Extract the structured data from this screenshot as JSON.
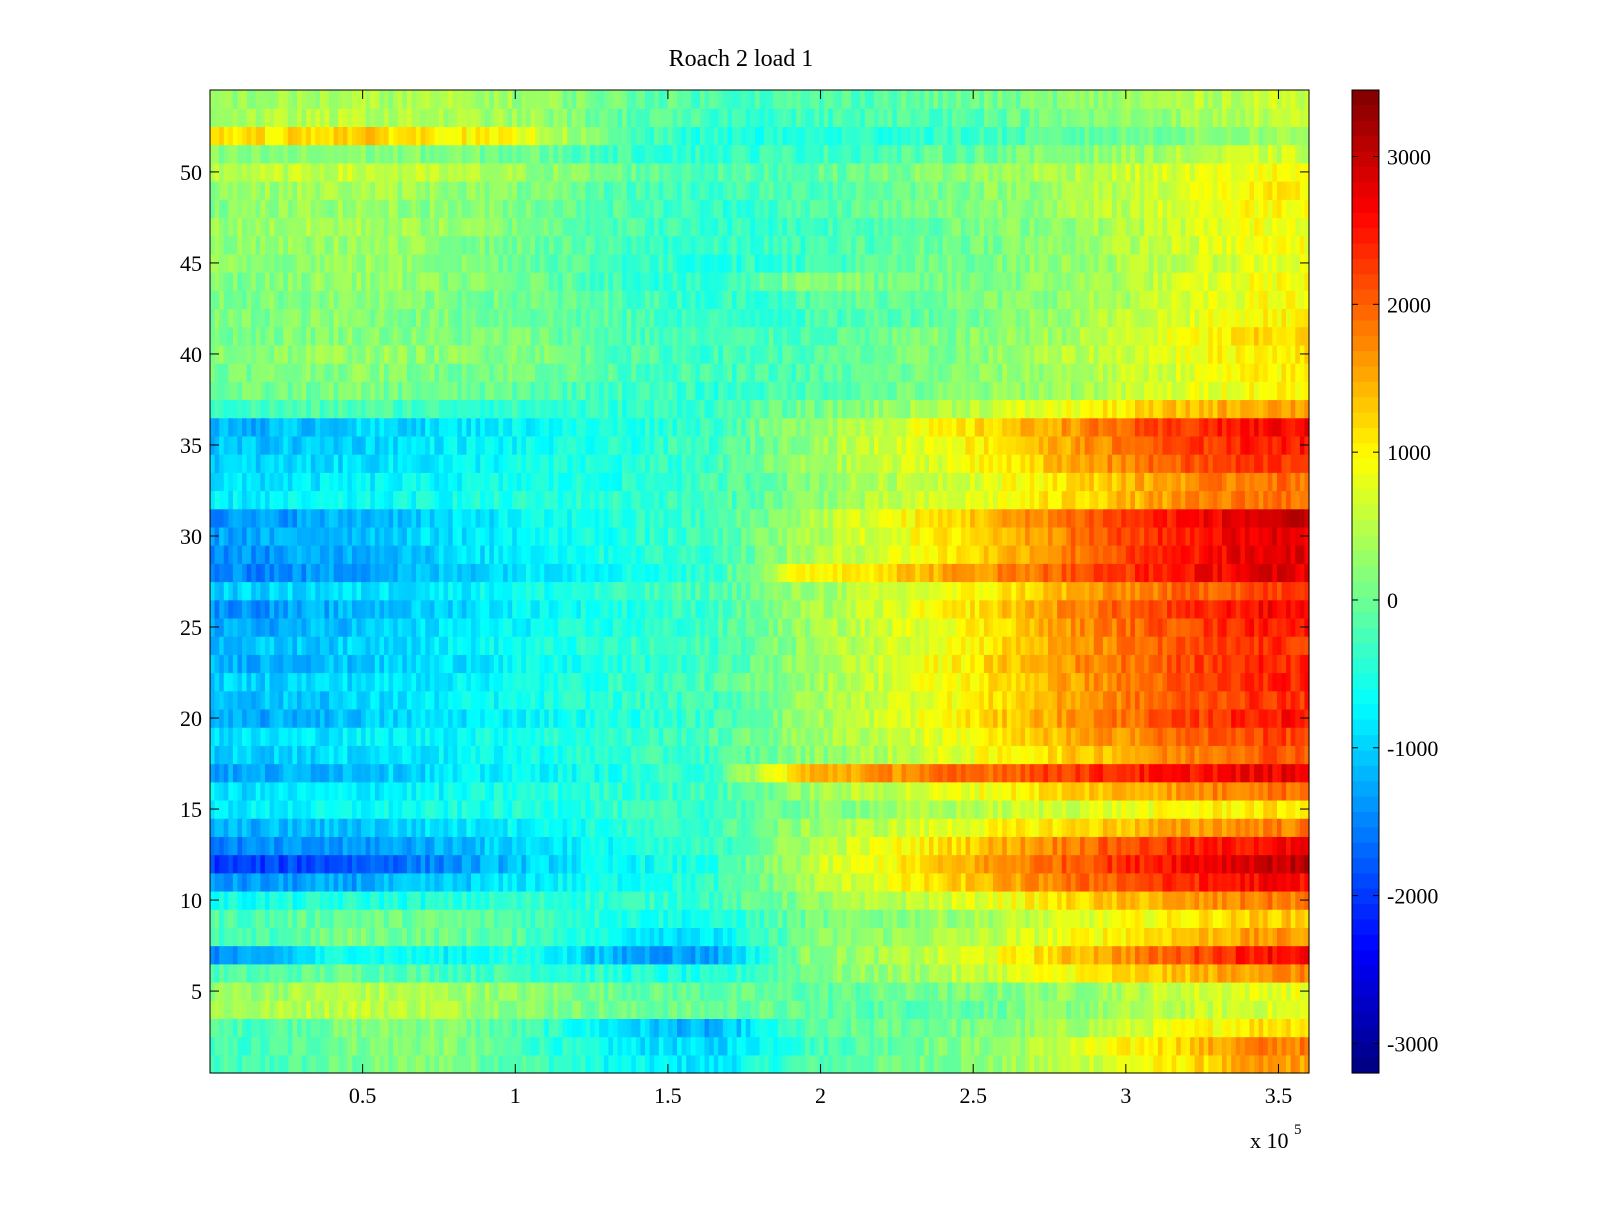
{
  "chart_data": {
    "type": "heatmap",
    "title": "Roach 2 load 1",
    "xlabel": "",
    "ylabel": "",
    "x_multiplier_label": "x 10",
    "x_multiplier_exponent": "5",
    "xlim": [
      0,
      360000
    ],
    "ylim": [
      0.5,
      54.5
    ],
    "rows": 54,
    "x_ticks": [
      {
        "value": 50000,
        "label": "0.5"
      },
      {
        "value": 100000,
        "label": "1"
      },
      {
        "value": 150000,
        "label": "1.5"
      },
      {
        "value": 200000,
        "label": "2"
      },
      {
        "value": 250000,
        "label": "2.5"
      },
      {
        "value": 300000,
        "label": "3"
      },
      {
        "value": 350000,
        "label": "3.5"
      }
    ],
    "y_ticks": [
      {
        "value": 5,
        "label": "5"
      },
      {
        "value": 10,
        "label": "10"
      },
      {
        "value": 15,
        "label": "15"
      },
      {
        "value": 20,
        "label": "20"
      },
      {
        "value": 25,
        "label": "25"
      },
      {
        "value": 30,
        "label": "30"
      },
      {
        "value": 35,
        "label": "35"
      },
      {
        "value": 40,
        "label": "40"
      },
      {
        "value": 45,
        "label": "45"
      },
      {
        "value": 50,
        "label": "50"
      }
    ],
    "colorbar": {
      "colormap": "jet",
      "clim": [
        -3200,
        3450
      ],
      "ticks": [
        {
          "value": 3000,
          "label": "3000"
        },
        {
          "value": 2000,
          "label": "2000"
        },
        {
          "value": 1000,
          "label": "1000"
        },
        {
          "value": 0,
          "label": "0"
        },
        {
          "value": -1000,
          "label": "-1000"
        },
        {
          "value": -2000,
          "label": "-2000"
        },
        {
          "value": -3000,
          "label": "-3000"
        }
      ]
    },
    "x_bin_centers": [
      15000,
      45000,
      75000,
      105000,
      135000,
      165000,
      195000,
      225000,
      255000,
      285000,
      315000,
      345000
    ],
    "z_rows_by_y": [
      {
        "y": 1,
        "values": [
          -300,
          0,
          200,
          -200,
          -700,
          -900,
          -200,
          0,
          200,
          600,
          1000,
          1600
        ]
      },
      {
        "y": 2,
        "values": [
          -300,
          100,
          200,
          -300,
          -800,
          -1000,
          -300,
          0,
          200,
          700,
          1200,
          1800
        ]
      },
      {
        "y": 3,
        "values": [
          -200,
          100,
          200,
          -300,
          -900,
          -1300,
          -200,
          0,
          100,
          400,
          800,
          1200
        ]
      },
      {
        "y": 4,
        "values": [
          400,
          600,
          500,
          200,
          0,
          0,
          -100,
          -100,
          0,
          200,
          500,
          700
        ]
      },
      {
        "y": 5,
        "values": [
          300,
          500,
          400,
          200,
          0,
          -100,
          -100,
          0,
          100,
          300,
          600,
          800
        ]
      },
      {
        "y": 6,
        "values": [
          -200,
          0,
          -200,
          -300,
          -500,
          -600,
          100,
          300,
          600,
          1000,
          1300,
          1700
        ]
      },
      {
        "y": 7,
        "values": [
          -1400,
          -500,
          -700,
          -500,
          -1300,
          -1300,
          200,
          400,
          800,
          1400,
          2000,
          2600
        ]
      },
      {
        "y": 8,
        "values": [
          -300,
          100,
          0,
          -200,
          -700,
          -900,
          100,
          300,
          500,
          900,
          1300,
          1600
        ]
      },
      {
        "y": 9,
        "values": [
          -200,
          0,
          0,
          -200,
          -500,
          -600,
          0,
          200,
          400,
          700,
          1000,
          1300
        ]
      },
      {
        "y": 10,
        "values": [
          -600,
          -500,
          -500,
          -400,
          -400,
          -300,
          200,
          500,
          800,
          1200,
          1500,
          1800
        ]
      },
      {
        "y": 11,
        "values": [
          -1400,
          -1300,
          -1100,
          -800,
          -600,
          -400,
          400,
          900,
          1400,
          1900,
          2300,
          2600
        ]
      },
      {
        "y": 12,
        "values": [
          -2000,
          -1800,
          -1500,
          -1000,
          -700,
          -500,
          500,
          1000,
          1600,
          2100,
          2600,
          3000
        ]
      },
      {
        "y": 13,
        "values": [
          -1500,
          -1400,
          -1200,
          -900,
          -600,
          -400,
          400,
          900,
          1400,
          1900,
          2300,
          2600
        ]
      },
      {
        "y": 14,
        "values": [
          -1200,
          -1100,
          -900,
          -700,
          -500,
          -300,
          300,
          600,
          900,
          1200,
          1500,
          1800
        ]
      },
      {
        "y": 15,
        "values": [
          -800,
          -700,
          -600,
          -500,
          -400,
          -300,
          100,
          300,
          500,
          700,
          900,
          1100
        ]
      },
      {
        "y": 16,
        "values": [
          -900,
          -800,
          -700,
          -500,
          -400,
          -300,
          300,
          600,
          900,
          1300,
          1600,
          1900
        ]
      },
      {
        "y": 17,
        "values": [
          -1300,
          -1100,
          -900,
          -700,
          -500,
          -300,
          1400,
          1700,
          2000,
          2300,
          2500,
          2700
        ]
      },
      {
        "y": 18,
        "values": [
          -1000,
          -900,
          -800,
          -600,
          -400,
          -300,
          200,
          500,
          900,
          1300,
          1700,
          2100
        ]
      },
      {
        "y": 19,
        "values": [
          -900,
          -800,
          -700,
          -500,
          -400,
          -200,
          300,
          600,
          1000,
          1500,
          1900,
          2200
        ]
      },
      {
        "y": 20,
        "values": [
          -1300,
          -1100,
          -900,
          -700,
          -500,
          -300,
          300,
          700,
          1200,
          1700,
          2100,
          2500
        ]
      },
      {
        "y": 21,
        "values": [
          -1100,
          -1000,
          -800,
          -600,
          -400,
          -300,
          300,
          700,
          1100,
          1600,
          2000,
          2300
        ]
      },
      {
        "y": 22,
        "values": [
          -1000,
          -900,
          -800,
          -600,
          -400,
          -200,
          300,
          700,
          1100,
          1600,
          2000,
          2400
        ]
      },
      {
        "y": 23,
        "values": [
          -1200,
          -1100,
          -900,
          -700,
          -500,
          -300,
          300,
          700,
          1200,
          1700,
          2100,
          2400
        ]
      },
      {
        "y": 24,
        "values": [
          -1100,
          -1000,
          -800,
          -600,
          -400,
          -300,
          300,
          700,
          1100,
          1600,
          2000,
          2300
        ]
      },
      {
        "y": 25,
        "values": [
          -1300,
          -1100,
          -900,
          -700,
          -500,
          -300,
          300,
          700,
          1100,
          1700,
          2100,
          2500
        ]
      },
      {
        "y": 26,
        "values": [
          -1400,
          -1200,
          -1000,
          -700,
          -500,
          -300,
          300,
          700,
          1200,
          1800,
          2200,
          2600
        ]
      },
      {
        "y": 27,
        "values": [
          -1000,
          -900,
          -800,
          -600,
          -400,
          -200,
          300,
          600,
          1000,
          1500,
          1900,
          2200
        ]
      },
      {
        "y": 28,
        "values": [
          -1500,
          -1300,
          -1100,
          -800,
          -600,
          -400,
          1000,
          1300,
          1700,
          2100,
          2500,
          2800
        ]
      },
      {
        "y": 29,
        "values": [
          -1400,
          -1200,
          -1000,
          -700,
          -500,
          -300,
          400,
          800,
          1300,
          1900,
          2400,
          2800
        ]
      },
      {
        "y": 30,
        "values": [
          -1300,
          -1100,
          -900,
          -700,
          -500,
          -300,
          400,
          800,
          1300,
          1900,
          2400,
          2800
        ]
      },
      {
        "y": 31,
        "values": [
          -1400,
          -1200,
          -1000,
          -700,
          -500,
          -300,
          400,
          900,
          1400,
          2000,
          2500,
          2900
        ]
      },
      {
        "y": 32,
        "values": [
          -800,
          -700,
          -600,
          -500,
          -400,
          -300,
          200,
          500,
          800,
          1200,
          1600,
          1900
        ]
      },
      {
        "y": 33,
        "values": [
          -900,
          -800,
          -700,
          -600,
          -500,
          -300,
          200,
          500,
          800,
          1200,
          1600,
          1900
        ]
      },
      {
        "y": 34,
        "values": [
          -1000,
          -900,
          -800,
          -600,
          -500,
          -300,
          300,
          600,
          1000,
          1500,
          2000,
          2300
        ]
      },
      {
        "y": 35,
        "values": [
          -1100,
          -1000,
          -800,
          -700,
          -500,
          -300,
          300,
          700,
          1100,
          1600,
          2100,
          2500
        ]
      },
      {
        "y": 36,
        "values": [
          -1200,
          -1000,
          -900,
          -700,
          -500,
          -300,
          300,
          700,
          1200,
          1700,
          2200,
          2600
        ]
      },
      {
        "y": 37,
        "values": [
          -300,
          -200,
          -300,
          -400,
          -400,
          -300,
          0,
          300,
          600,
          900,
          1300,
          1600
        ]
      },
      {
        "y": 38,
        "values": [
          0,
          100,
          0,
          -100,
          -300,
          -400,
          -200,
          0,
          200,
          400,
          700,
          1000
        ]
      },
      {
        "y": 39,
        "values": [
          100,
          200,
          100,
          100,
          -200,
          -300,
          -200,
          0,
          200,
          400,
          700,
          1000
        ]
      },
      {
        "y": 40,
        "values": [
          200,
          300,
          200,
          200,
          -200,
          -300,
          -200,
          0,
          200,
          500,
          800,
          1100
        ]
      },
      {
        "y": 41,
        "values": [
          100,
          200,
          100,
          100,
          -200,
          -300,
          -200,
          0,
          200,
          400,
          800,
          1200
        ]
      },
      {
        "y": 42,
        "values": [
          100,
          200,
          100,
          0,
          -200,
          -400,
          -300,
          -100,
          100,
          400,
          700,
          1000
        ]
      },
      {
        "y": 43,
        "values": [
          100,
          200,
          100,
          0,
          -200,
          -400,
          -200,
          0,
          100,
          300,
          600,
          900
        ]
      },
      {
        "y": 44,
        "values": [
          100,
          300,
          200,
          0,
          -300,
          -500,
          300,
          0,
          100,
          300,
          600,
          900
        ]
      },
      {
        "y": 45,
        "values": [
          200,
          300,
          200,
          0,
          -300,
          -500,
          -300,
          -100,
          100,
          300,
          500,
          800
        ]
      },
      {
        "y": 46,
        "values": [
          200,
          300,
          200,
          0,
          -300,
          -400,
          -300,
          -100,
          100,
          300,
          600,
          900
        ]
      },
      {
        "y": 47,
        "values": [
          300,
          400,
          300,
          100,
          -200,
          -400,
          -300,
          -100,
          100,
          300,
          600,
          900
        ]
      },
      {
        "y": 48,
        "values": [
          200,
          300,
          200,
          100,
          -200,
          -400,
          -200,
          0,
          200,
          400,
          700,
          1000
        ]
      },
      {
        "y": 49,
        "values": [
          300,
          400,
          300,
          100,
          -200,
          -300,
          -200,
          0,
          200,
          400,
          700,
          1000
        ]
      },
      {
        "y": 50,
        "values": [
          500,
          600,
          500,
          300,
          0,
          -200,
          -100,
          100,
          300,
          500,
          700,
          900
        ]
      },
      {
        "y": 51,
        "values": [
          100,
          200,
          100,
          0,
          -300,
          -400,
          -300,
          -200,
          0,
          200,
          400,
          600
        ]
      },
      {
        "y": 52,
        "values": [
          1100,
          1300,
          1100,
          800,
          -200,
          -500,
          -500,
          -400,
          -300,
          -100,
          100,
          300
        ]
      },
      {
        "y": 53,
        "values": [
          400,
          500,
          400,
          300,
          -100,
          -300,
          -300,
          -200,
          -100,
          100,
          300,
          500
        ]
      },
      {
        "y": 54,
        "values": [
          300,
          400,
          400,
          300,
          0,
          -200,
          -200,
          -100,
          0,
          200,
          400,
          600
        ]
      }
    ]
  }
}
